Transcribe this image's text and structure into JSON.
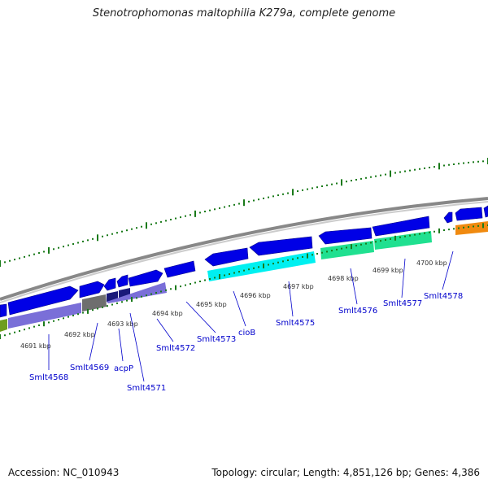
{
  "title": "Stenotrophomonas maltophilia K279a, complete genome",
  "accession": "Accession: NC_010943",
  "topology": "Topology: circular; Length: 4,851,126 bp; Genes: 4,386",
  "colors": {
    "forward_gene": "#0000e6",
    "green_ticks": "#1a7a1a",
    "backbone": "#888888",
    "cds_purple": "#7a6fd8",
    "cds_gray": "#6e6e6e",
    "cds_navy": "#1a1a7a",
    "cds_cyan": "#00f0f0",
    "cds_green": "#20e090",
    "cds_orange": "#f08a10",
    "cds_olive": "#6e9e1e",
    "label": "#0000cc"
  },
  "kbp_ticks": [
    "4691 kbp",
    "4692 kbp",
    "4693 kbp",
    "4694 kbp",
    "4695 kbp",
    "4696 kbp",
    "4697 kbp",
    "4698 kbp",
    "4699 kbp",
    "4700 kbp"
  ],
  "gene_labels": [
    "Smlt4568",
    "Smlt4569",
    "acpP",
    "Smlt4571",
    "Smlt4572",
    "Smlt4573",
    "cioB",
    "Smlt4575",
    "Smlt4576",
    "Smlt4577",
    "Smlt4578"
  ]
}
